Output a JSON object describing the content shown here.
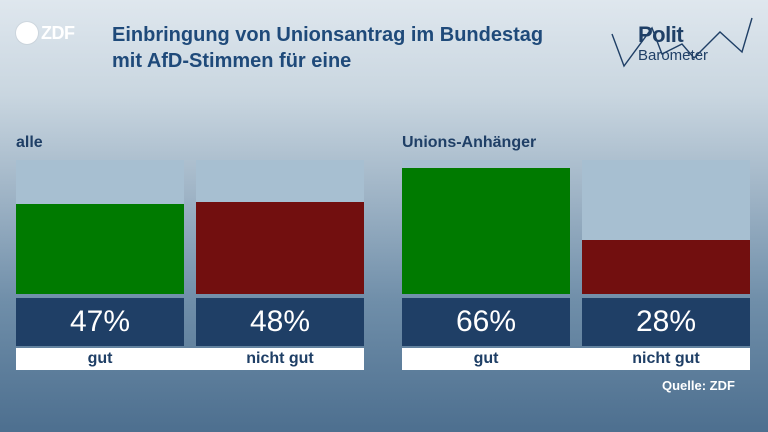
{
  "header": {
    "title": "Einbringung von Unionsantrag im Bundestag mit AfD-Stimmen für eine",
    "logo_left": "ZDF",
    "logo_right_line1": "Polit",
    "logo_right_line2": "Barometer"
  },
  "source": "Quelle: ZDF",
  "colors": {
    "gut": "#007a00",
    "nicht_gut": "#720f0f",
    "accent": "#1f3f66"
  },
  "chart_data": [
    {
      "type": "bar",
      "title": "alle",
      "categories": [
        "gut",
        "nicht gut"
      ],
      "values": [
        47,
        48
      ],
      "value_labels": [
        "47%",
        "48%"
      ],
      "ylim": [
        0,
        70
      ]
    },
    {
      "type": "bar",
      "title": "Unions-Anhänger",
      "categories": [
        "gut",
        "nicht gut"
      ],
      "values": [
        66,
        28
      ],
      "value_labels": [
        "66%",
        "28%"
      ],
      "ylim": [
        0,
        70
      ]
    }
  ]
}
